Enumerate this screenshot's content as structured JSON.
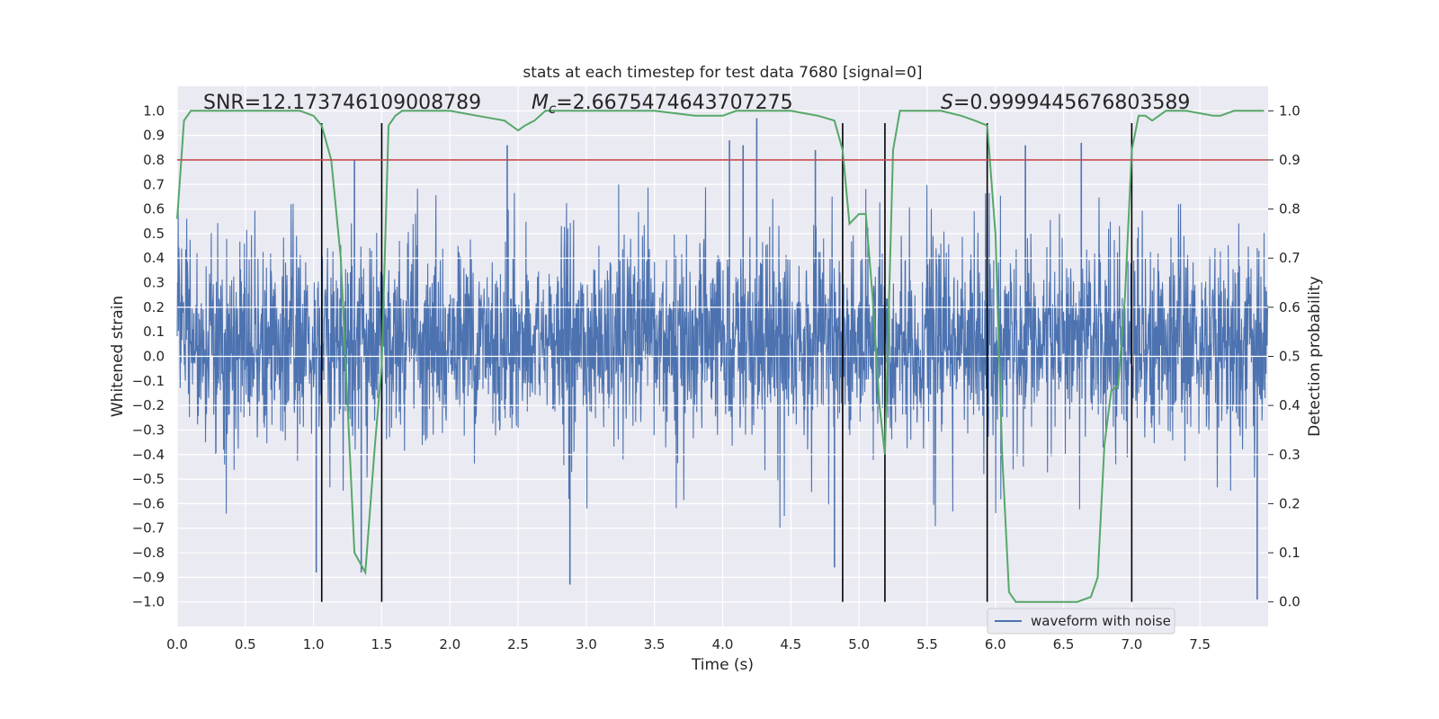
{
  "chart_data": {
    "type": "line",
    "title": "stats at each timestep for test data 7680 [signal=0]",
    "xlabel": "Time (s)",
    "ylabel": "Whitened strain",
    "y2label": "Detection probability",
    "xlim": [
      0,
      8
    ],
    "ylim": [
      -1.1,
      1.1
    ],
    "y2lim": [
      -0.05,
      1.05
    ],
    "x_ticks": [
      "0.0",
      "0.5",
      "1.0",
      "1.5",
      "2.0",
      "2.5",
      "3.0",
      "3.5",
      "4.0",
      "4.5",
      "5.0",
      "5.5",
      "6.0",
      "6.5",
      "7.0",
      "7.5"
    ],
    "y_ticks": [
      "1.0",
      "0.9",
      "0.8",
      "0.7",
      "0.6",
      "0.5",
      "0.4",
      "0.3",
      "0.2",
      "0.1",
      "0.0",
      "−0.1",
      "−0.2",
      "−0.3",
      "−0.4",
      "−0.5",
      "−0.6",
      "−0.7",
      "−0.8",
      "−0.9",
      "−1.0"
    ],
    "y2_ticks": [
      "1.0",
      "0.9",
      "0.8",
      "0.7",
      "0.6",
      "0.5",
      "0.4",
      "0.3",
      "0.2",
      "0.1",
      "0.0"
    ],
    "annotations": {
      "snr": "SNR=12.173746109008789",
      "mc_symbol": "M",
      "mc_sub": "c",
      "mc_value": "=2.6675474643707275",
      "s_symbol": "S",
      "s_value": "=0.9999445676803589"
    },
    "threshold": 0.9,
    "vertical_lines": [
      1.06,
      1.5,
      4.88,
      5.19,
      5.94,
      7.0
    ],
    "series": [
      {
        "name": "waveform with noise",
        "color": "#4c72b0",
        "description": "dense noisy whitened strain, typical range about -0.5 to 0.65 with spikes near 0.97 at t=4.25 and -0.99 at t=7.92",
        "spikes": [
          {
            "x": 4.25,
            "y": 0.97
          },
          {
            "x": 4.05,
            "y": 0.88
          },
          {
            "x": 6.63,
            "y": 0.87
          },
          {
            "x": 6.22,
            "y": 0.86
          },
          {
            "x": 4.15,
            "y": 0.86
          },
          {
            "x": 2.42,
            "y": 0.86
          },
          {
            "x": 4.68,
            "y": 0.84
          },
          {
            "x": 1.3,
            "y": 0.8
          },
          {
            "x": 2.88,
            "y": -0.93
          },
          {
            "x": 7.92,
            "y": -0.99
          },
          {
            "x": 1.02,
            "y": -0.88
          },
          {
            "x": 4.82,
            "y": -0.86
          },
          {
            "x": 1.35,
            "y": -0.88
          }
        ]
      },
      {
        "name": "",
        "color": "#55a868",
        "axis": "right",
        "x": [
          0,
          0.05,
          0.1,
          0.2,
          0.3,
          0.5,
          0.7,
          0.9,
          1.0,
          1.06,
          1.13,
          1.2,
          1.3,
          1.38,
          1.45,
          1.5,
          1.55,
          1.6,
          1.65,
          1.7,
          1.8,
          2.0,
          2.2,
          2.4,
          2.5,
          2.55,
          2.62,
          2.7,
          2.8,
          3.0,
          3.5,
          3.8,
          4.0,
          4.1,
          4.5,
          4.7,
          4.82,
          4.88,
          4.93,
          5.0,
          5.05,
          5.1,
          5.15,
          5.19,
          5.25,
          5.3,
          5.35,
          5.45,
          5.6,
          5.75,
          5.85,
          5.94,
          6.0,
          6.05,
          6.1,
          6.15,
          6.2,
          6.3,
          6.5,
          6.6,
          6.7,
          6.75,
          6.8,
          6.85,
          6.9,
          6.95,
          7.0,
          7.05,
          7.1,
          7.15,
          7.2,
          7.25,
          7.3,
          7.4,
          7.6,
          7.65,
          7.75,
          7.8,
          7.97
        ],
        "y": [
          0.78,
          0.98,
          1.0,
          1.0,
          1.0,
          1.0,
          1.0,
          1.0,
          0.99,
          0.97,
          0.9,
          0.7,
          0.1,
          0.06,
          0.32,
          0.48,
          0.97,
          0.99,
          1.0,
          1.0,
          1.0,
          1.0,
          0.99,
          0.98,
          0.96,
          0.97,
          0.98,
          1.0,
          1.0,
          1.0,
          1.0,
          0.99,
          0.99,
          1.0,
          1.0,
          0.99,
          0.98,
          0.92,
          0.77,
          0.79,
          0.79,
          0.62,
          0.4,
          0.3,
          0.92,
          1.0,
          1.0,
          1.0,
          1.0,
          0.99,
          0.98,
          0.97,
          0.75,
          0.3,
          0.02,
          0.0,
          0.0,
          0.0,
          0.0,
          0.0,
          0.01,
          0.05,
          0.32,
          0.43,
          0.44,
          0.62,
          0.92,
          0.99,
          0.99,
          0.98,
          0.99,
          1.0,
          1.0,
          1.0,
          0.99,
          0.99,
          1.0,
          1.0,
          1.0
        ]
      },
      {
        "name": "",
        "color": "#c44e52",
        "axis": "right",
        "type": "threshold",
        "y": 0.9
      }
    ],
    "legend": {
      "placement": "lower-right",
      "entries": [
        "waveform with noise"
      ]
    },
    "grid": true
  }
}
